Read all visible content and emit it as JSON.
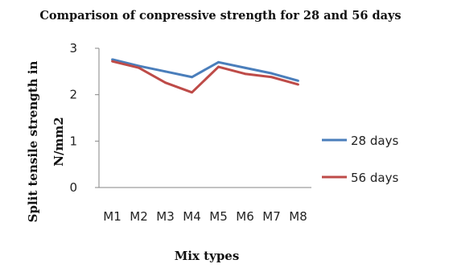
{
  "chart_data": {
    "type": "line",
    "title": "Comparison of conpressive strength for 28 and 56 days",
    "xlabel": "Mix types",
    "ylabel_lines": [
      "Split tensile strength in",
      "N/mm2"
    ],
    "categories": [
      "M1",
      "M2",
      "M3",
      "M4",
      "M5",
      "M6",
      "M7",
      "M8"
    ],
    "ylim": [
      0,
      3
    ],
    "yticks": [
      "0",
      "1",
      "2",
      "3"
    ],
    "grid": false,
    "legend_position": "right",
    "series": [
      {
        "name": "28 days",
        "color": "#4a7ebb",
        "values": [
          2.76,
          2.62,
          2.5,
          2.38,
          2.7,
          2.58,
          2.46,
          2.3
        ]
      },
      {
        "name": "56 days",
        "color": "#be4b48",
        "values": [
          2.72,
          2.58,
          2.26,
          2.05,
          2.6,
          2.45,
          2.38,
          2.22
        ]
      }
    ]
  }
}
